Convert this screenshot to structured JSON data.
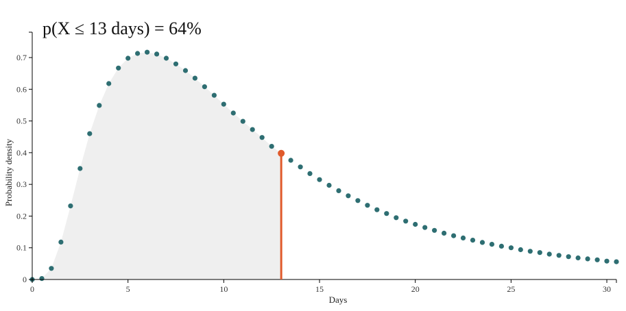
{
  "chart_data": {
    "type": "scatter",
    "title": "p(X ≤ 13 days) = 64%",
    "xlabel": "Days",
    "ylabel": "Probability density",
    "xlim": [
      0,
      30.5
    ],
    "ylim": [
      0,
      0.78
    ],
    "x_ticks": [
      0,
      5,
      10,
      15,
      20,
      25,
      30
    ],
    "y_ticks": [
      0,
      0.1,
      0.2,
      0.3,
      0.4,
      0.5,
      0.6,
      0.7
    ],
    "grid": false,
    "x": [
      0,
      0.5,
      1,
      1.5,
      2,
      2.5,
      3,
      3.5,
      4,
      4.5,
      5,
      5.5,
      6,
      6.5,
      7,
      7.5,
      8,
      8.5,
      9,
      9.5,
      10,
      10.5,
      11,
      11.5,
      12,
      12.5,
      13,
      13.5,
      14,
      14.5,
      15,
      15.5,
      16,
      16.5,
      17,
      17.5,
      18,
      18.5,
      19,
      19.5,
      20,
      20.5,
      21,
      21.5,
      22,
      22.5,
      23,
      23.5,
      24,
      24.5,
      25,
      25.5,
      26,
      26.5,
      27,
      27.5,
      28,
      28.5,
      29,
      29.5,
      30,
      30.5
    ],
    "y": [
      0,
      0.003,
      0.035,
      0.118,
      0.232,
      0.35,
      0.46,
      0.549,
      0.618,
      0.667,
      0.698,
      0.713,
      0.717,
      0.711,
      0.698,
      0.68,
      0.659,
      0.635,
      0.608,
      0.581,
      0.553,
      0.525,
      0.499,
      0.473,
      0.448,
      0.42,
      0.398,
      0.376,
      0.355,
      0.334,
      0.315,
      0.297,
      0.28,
      0.264,
      0.249,
      0.234,
      0.22,
      0.208,
      0.195,
      0.184,
      0.174,
      0.164,
      0.155,
      0.146,
      0.138,
      0.131,
      0.124,
      0.117,
      0.111,
      0.105,
      0.1,
      0.094,
      0.089,
      0.085,
      0.08,
      0.076,
      0.072,
      0.068,
      0.065,
      0.062,
      0.058,
      0.056
    ],
    "shaded_until": 13,
    "marker": {
      "x": 13,
      "y": 0.398
    },
    "colors": {
      "points": "#2e6e72",
      "marker": "#e05a2b",
      "shade": "#efefef",
      "axis": "#000000"
    }
  }
}
